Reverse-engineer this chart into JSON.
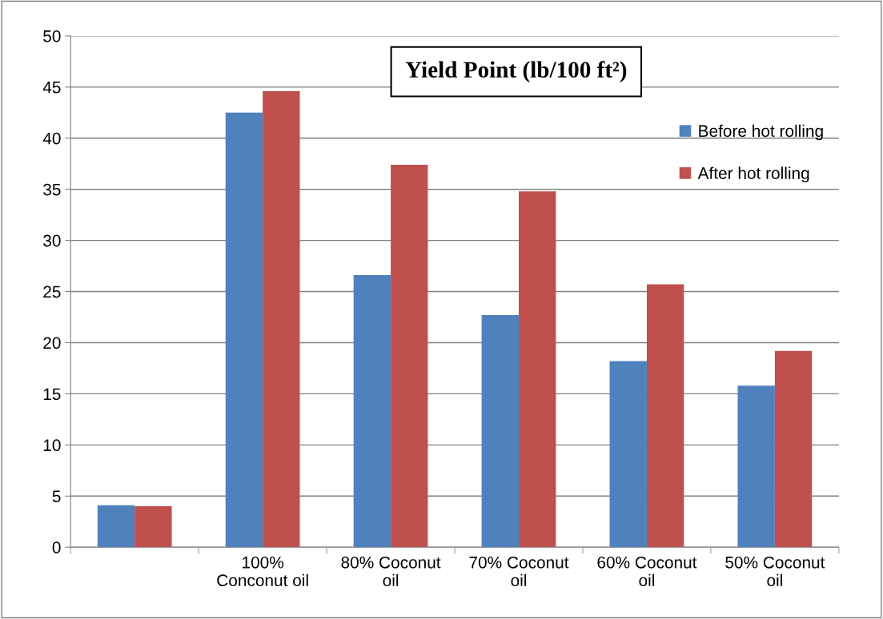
{
  "chart_data": {
    "type": "bar",
    "title": "Yield Point (lb/100 ft²)",
    "categories": [
      null,
      "100%\nConconut oil",
      "80% Coconut\noil",
      "70% Coconut\noil",
      "60% Coconut\noil",
      "50% Coconut\noil"
    ],
    "series": [
      {
        "name": "Before hot rolling",
        "color": "#4f81bd",
        "values": [
          4.1,
          42.5,
          26.6,
          22.7,
          18.2,
          15.8
        ]
      },
      {
        "name": "After hot rolling",
        "color": "#c0504d",
        "values": [
          4.0,
          44.6,
          37.4,
          34.8,
          25.7,
          19.2
        ]
      }
    ],
    "ylim": [
      0,
      50
    ],
    "yticks": [
      0,
      5,
      10,
      15,
      20,
      25,
      30,
      35,
      40,
      45,
      50
    ],
    "grid": "y",
    "legend": "right"
  }
}
